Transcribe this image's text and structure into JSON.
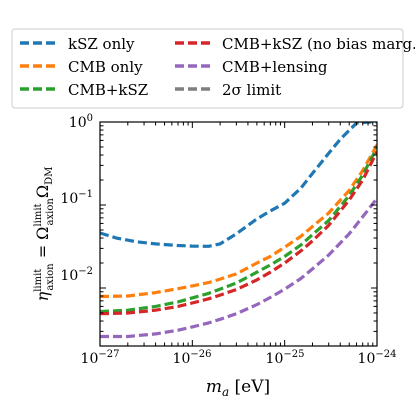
{
  "chart_data": {
    "type": "line",
    "xscale": "log",
    "yscale": "log",
    "xlim": [
      1e-27,
      1e-24
    ],
    "ylim": [
      0.002,
      1
    ],
    "xlabel": {
      "base": "m",
      "sub": "a",
      "unit": " [eV]"
    },
    "ylabel": {
      "eta": "η",
      "eta_sup": "limit",
      "eta_sub": "axion",
      "eq": " = ",
      "omega": "Ω",
      "omega_sup": "limit",
      "omega_sub": "axion",
      "omega2": "Ω",
      "omega2_sub": "DM"
    },
    "xticks": [
      {
        "value": 1e-27,
        "mant": "10",
        "exp": "−27"
      },
      {
        "value": 1e-26,
        "mant": "10",
        "exp": "−26"
      },
      {
        "value": 1e-25,
        "mant": "10",
        "exp": "−25"
      },
      {
        "value": 1e-24,
        "mant": "10",
        "exp": "−24"
      }
    ],
    "yticks": [
      {
        "value": 0.01,
        "mant": "10",
        "exp": "−2"
      },
      {
        "value": 0.1,
        "mant": "10",
        "exp": "−1"
      },
      {
        "value": 1,
        "mant": "10",
        "exp": "0"
      }
    ],
    "legend": {
      "placement": "top",
      "columns": 2,
      "entries": [
        {
          "label": "kSZ only",
          "color": "#1f77b4",
          "style": "dashed"
        },
        {
          "label": "CMB only",
          "color": "#ff7f0e",
          "style": "dashed"
        },
        {
          "label": "CMB+kSZ",
          "color": "#2ca02c",
          "style": "dashed"
        },
        {
          "label": "CMB+kSZ (no bias marg.)",
          "color": "#d62728",
          "style": "dashed"
        },
        {
          "label": "CMB+lensing",
          "color": "#9467bd",
          "style": "dashed"
        },
        {
          "label": "2σ limit",
          "color": "#7f7f7f",
          "style": "dashed"
        }
      ]
    },
    "series": [
      {
        "name": "kSZ only",
        "color": "#1f77b4",
        "x": [
          1e-27,
          1.5e-27,
          2.5e-27,
          4e-27,
          7e-27,
          1e-26,
          1.5e-26,
          2e-26,
          3e-26,
          5e-26,
          7e-26,
          1e-25,
          1.5e-25,
          2e-25,
          3e-25,
          4e-25,
          6e-25,
          8e-25,
          1e-24
        ],
        "y": [
          0.046,
          0.04,
          0.036,
          0.034,
          0.0325,
          0.032,
          0.0318,
          0.034,
          0.045,
          0.068,
          0.085,
          0.105,
          0.16,
          0.24,
          0.42,
          0.62,
          0.97,
          1.0,
          1.0
        ]
      },
      {
        "name": "CMB only",
        "color": "#ff7f0e",
        "x": [
          1e-27,
          2e-27,
          4e-27,
          7e-27,
          1e-26,
          1.5e-26,
          2e-26,
          3e-26,
          5e-26,
          7e-26,
          1e-25,
          1.5e-25,
          2e-25,
          3e-25,
          5e-25,
          7e-25,
          1e-24
        ],
        "y": [
          0.0079,
          0.008,
          0.0088,
          0.0098,
          0.0106,
          0.0116,
          0.0128,
          0.0148,
          0.02,
          0.024,
          0.031,
          0.042,
          0.055,
          0.08,
          0.15,
          0.26,
          0.53
        ]
      },
      {
        "name": "CMB+kSZ",
        "color": "#2ca02c",
        "x": [
          1e-27,
          2e-27,
          4e-27,
          7e-27,
          1e-26,
          1.5e-26,
          2e-26,
          3e-26,
          5e-26,
          7e-26,
          1e-25,
          1.5e-25,
          2e-25,
          3e-25,
          5e-25,
          7e-25,
          1e-24
        ],
        "y": [
          0.0052,
          0.0054,
          0.006,
          0.0068,
          0.0076,
          0.0086,
          0.0097,
          0.0115,
          0.0155,
          0.019,
          0.024,
          0.033,
          0.044,
          0.065,
          0.13,
          0.23,
          0.49
        ]
      },
      {
        "name": "CMB+kSZ (no bias marg.)",
        "color": "#d62728",
        "x": [
          1e-27,
          2e-27,
          4e-27,
          7e-27,
          1e-26,
          1.5e-26,
          2e-26,
          3e-26,
          5e-26,
          7e-26,
          1e-25,
          1.5e-25,
          2e-25,
          3e-25,
          5e-25,
          7e-25,
          1e-24
        ],
        "y": [
          0.0049,
          0.005,
          0.0054,
          0.006,
          0.0066,
          0.0074,
          0.0082,
          0.0096,
          0.0125,
          0.0155,
          0.02,
          0.028,
          0.037,
          0.057,
          0.115,
          0.2,
          0.44
        ]
      },
      {
        "name": "CMB+lensing",
        "color": "#9467bd",
        "x": [
          1e-27,
          2e-27,
          4e-27,
          7e-27,
          1e-26,
          1.5e-26,
          2e-26,
          3e-26,
          5e-26,
          7e-26,
          1e-25,
          1.5e-25,
          2e-25,
          3e-25,
          5e-25,
          7e-25,
          1e-24
        ],
        "y": [
          0.0026,
          0.0026,
          0.0028,
          0.0031,
          0.0034,
          0.0038,
          0.0042,
          0.0049,
          0.0063,
          0.0077,
          0.0097,
          0.013,
          0.017,
          0.025,
          0.045,
          0.072,
          0.12
        ]
      }
    ]
  }
}
